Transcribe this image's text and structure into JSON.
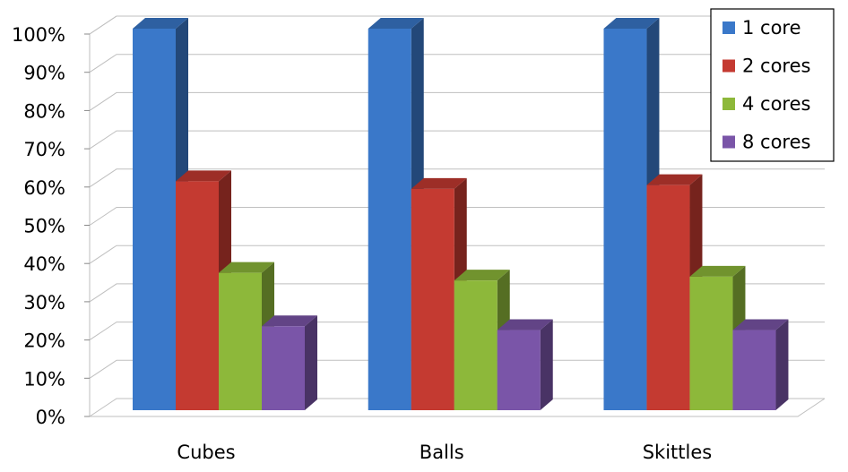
{
  "chart_data": {
    "type": "bar3d",
    "categories": [
      "Cubes",
      "Balls",
      "Skittles"
    ],
    "series": [
      {
        "name": "1 core",
        "color": "#3a78c9",
        "values": [
          100,
          100,
          100
        ]
      },
      {
        "name": "2 cores",
        "color": "#c43a31",
        "values": [
          60,
          58,
          59
        ]
      },
      {
        "name": "4 cores",
        "color": "#8db83a",
        "values": [
          36,
          34,
          35
        ]
      },
      {
        "name": "8 cores",
        "color": "#7a55a8",
        "values": [
          22,
          21,
          21
        ]
      }
    ],
    "ylim": [
      0,
      100
    ],
    "yticks": [
      {
        "value": 0,
        "label": "0%"
      },
      {
        "value": 10,
        "label": "10%"
      },
      {
        "value": 20,
        "label": "20%"
      },
      {
        "value": 30,
        "label": "30%"
      },
      {
        "value": 40,
        "label": "40%"
      },
      {
        "value": 50,
        "label": "50%"
      },
      {
        "value": 60,
        "label": "60%"
      },
      {
        "value": 70,
        "label": "70%"
      },
      {
        "value": 80,
        "label": "80%"
      },
      {
        "value": 90,
        "label": "90%"
      },
      {
        "value": 100,
        "label": "100%"
      }
    ],
    "grid": true,
    "legend": "top-right"
  }
}
